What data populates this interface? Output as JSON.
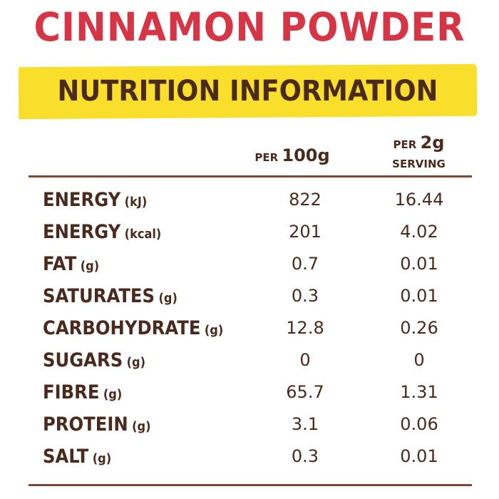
{
  "title": "CINNAMON POWDER",
  "subtitle": "NUTRITION INFORMATION",
  "columns": {
    "per100_prefix": "PER",
    "per100_value": "100g",
    "per2_prefix": "PER",
    "per2_value": "2g",
    "per2_suffix": "SERVING"
  },
  "colors": {
    "title": "#d63545",
    "banner": "#f9df2b",
    "text": "#4a2a1c"
  },
  "rows": [
    {
      "label": "ENERGY",
      "unit": "(kJ)",
      "per100": "822",
      "per2": "16.44"
    },
    {
      "label": "ENERGY",
      "unit": "(kcal)",
      "per100": "201",
      "per2": "4.02"
    },
    {
      "label": "FAT",
      "unit": "(g)",
      "per100": "0.7",
      "per2": "0.01"
    },
    {
      "label": "SATURATES",
      "unit": "(g)",
      "per100": "0.3",
      "per2": "0.01"
    },
    {
      "label": "CARBOHYDRATE",
      "unit": "(g)",
      "per100": "12.8",
      "per2": "0.26"
    },
    {
      "label": "SUGARS",
      "unit": "(g)",
      "per100": "0",
      "per2": "0"
    },
    {
      "label": "FIBRE",
      "unit": "(g)",
      "per100": "65.7",
      "per2": "1.31"
    },
    {
      "label": "PROTEIN",
      "unit": "(g)",
      "per100": "3.1",
      "per2": "0.06"
    },
    {
      "label": "SALT",
      "unit": "(g)",
      "per100": "0.3",
      "per2": "0.01"
    }
  ]
}
